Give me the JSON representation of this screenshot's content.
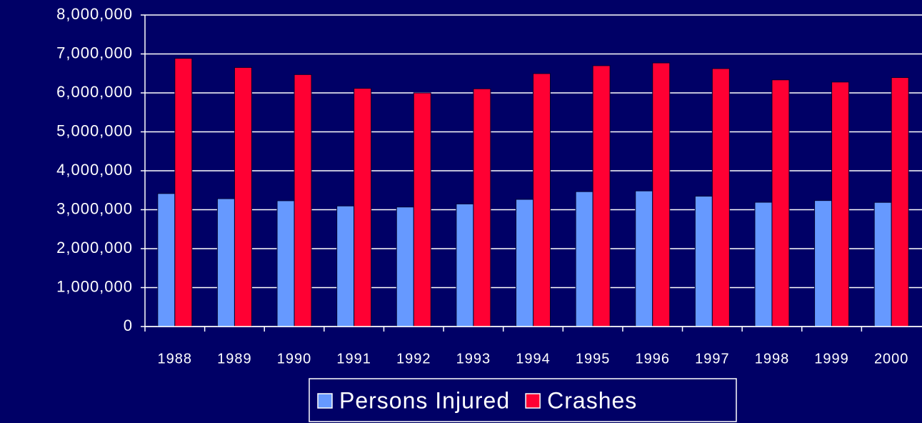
{
  "chart_data": {
    "type": "bar",
    "categories": [
      "1988",
      "1989",
      "1990",
      "1991",
      "1992",
      "1993",
      "1994",
      "1995",
      "1996",
      "1997",
      "1998",
      "1999",
      "2000"
    ],
    "series": [
      {
        "name": "Persons Injured",
        "color": "#6699ff",
        "values": [
          3416000,
          3284000,
          3231000,
          3097000,
          3070000,
          3149000,
          3266000,
          3465000,
          3483000,
          3348000,
          3192000,
          3236000,
          3189000
        ]
      },
      {
        "name": "Crashes",
        "color": "#ff0033",
        "values": [
          6887000,
          6653000,
          6471000,
          6117000,
          6000000,
          6106000,
          6496000,
          6699000,
          6770000,
          6624000,
          6335000,
          6279000,
          6394000
        ]
      }
    ],
    "ylim": [
      0,
      8000000
    ],
    "yticks": [
      0,
      {
        "value": 1000000,
        "label": "1,000,000"
      },
      {
        "value": 2000000,
        "label": "2,000,000"
      },
      {
        "value": 3000000,
        "label": "3,000,000"
      },
      {
        "value": 4000000,
        "label": "4,000,000"
      },
      {
        "value": 5000000,
        "label": "5,000,000"
      },
      {
        "value": 6000000,
        "label": "6,000,000"
      },
      {
        "value": 7000000,
        "label": "7,000,000"
      },
      {
        "value": 8000000,
        "label": "8,000,000"
      }
    ],
    "grid": true,
    "legend": "bottom"
  }
}
